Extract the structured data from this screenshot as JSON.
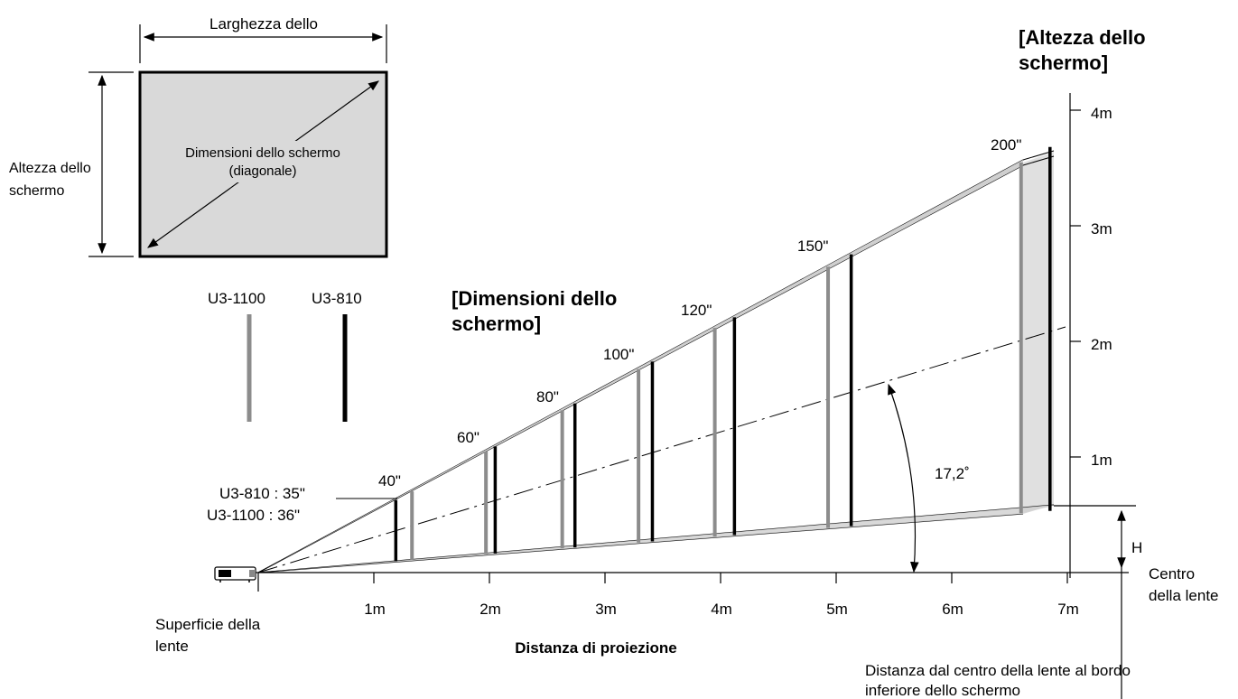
{
  "screen_inset": {
    "width_label": "Larghezza dello",
    "height_label_line1": "Altezza dello",
    "height_label_line2": "schermo",
    "diagonal_line1": "Dimensioni dello schermo",
    "diagonal_line2": "(diagonale)"
  },
  "legend": {
    "items": [
      {
        "label": "U3-1100",
        "color": "#8c8c8c"
      },
      {
        "label": "U3-810",
        "color": "#000000"
      }
    ]
  },
  "titles": {
    "screen_size_line1": "[Dimensioni dello",
    "screen_size_line2": "schermo]",
    "screen_height_line1": "[Altezza dello",
    "screen_height_line2": "schermo]"
  },
  "min_size": {
    "u3_810": "U3-810 : 35\"",
    "u3_1100": "U3-1100 : 36\""
  },
  "chart_data": {
    "type": "diagram",
    "x_axis": {
      "label": "Distanza di proiezione",
      "ticks": [
        "1m",
        "2m",
        "3m",
        "4m",
        "5m",
        "6m",
        "7m"
      ]
    },
    "y_axis": {
      "ticks": [
        "1m",
        "2m",
        "3m",
        "4m"
      ]
    },
    "screen_sizes": [
      {
        "label": "40\"",
        "u3_1100_distance_m": 1.33,
        "u3_810_distance_m": 1.19
      },
      {
        "label": "60\"",
        "u3_1100_distance_m": 1.97,
        "u3_810_distance_m": 2.05
      },
      {
        "label": "80\"",
        "u3_1100_distance_m": 2.63,
        "u3_810_distance_m": 2.74
      },
      {
        "label": "100\"",
        "u3_1100_distance_m": 3.29,
        "u3_810_distance_m": 3.41
      },
      {
        "label": "120\"",
        "u3_1100_distance_m": 3.95,
        "u3_810_distance_m": 4.12
      },
      {
        "label": "150\"",
        "u3_1100_distance_m": 4.93,
        "u3_810_distance_m": 5.13
      },
      {
        "label": "200\"",
        "u3_1100_distance_m": 6.6,
        "u3_810_distance_m": 6.85
      }
    ],
    "angle_label": "17,2˚",
    "h_label": "H",
    "lens_center_line1": "Centro",
    "lens_center_line2": "della lente",
    "lens_surface_line1": "Superficie della",
    "lens_surface_line2": "lente",
    "offset_note_line1": "Distanza dal centro della lente al bordo",
    "offset_note_line2": "inferiore dello schermo"
  }
}
